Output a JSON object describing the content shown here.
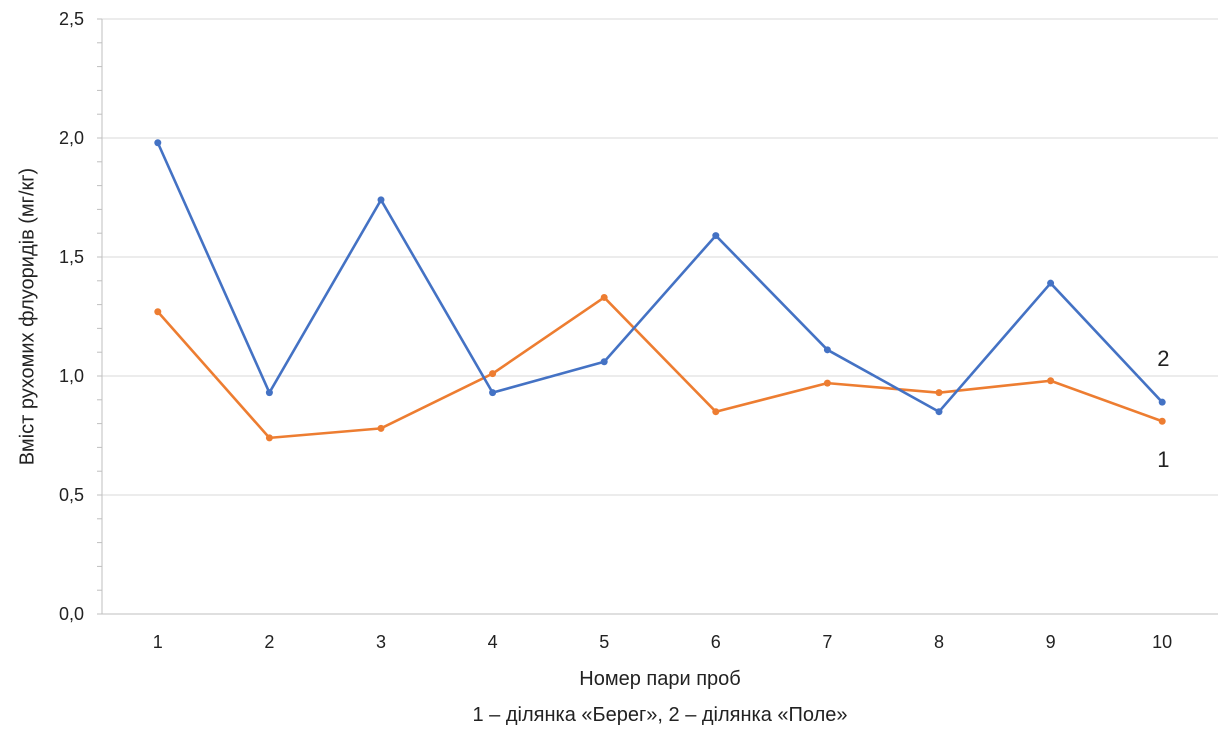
{
  "chart_data": {
    "type": "line",
    "categories": [
      "1",
      "2",
      "3",
      "4",
      "5",
      "6",
      "7",
      "8",
      "9",
      "10"
    ],
    "series": [
      {
        "name": "1",
        "color": "#ED7D31",
        "values": [
          1.27,
          0.74,
          0.78,
          1.01,
          1.33,
          0.85,
          0.97,
          0.93,
          0.98,
          0.81
        ]
      },
      {
        "name": "2",
        "color": "#4472C4",
        "values": [
          1.98,
          0.93,
          1.74,
          0.93,
          1.06,
          1.59,
          1.11,
          0.85,
          1.39,
          0.89
        ]
      }
    ],
    "xlabel": "Номер пари проб",
    "ylabel": "Вміст рухомих флуоридів (мг/кг)",
    "note": "1 – ділянка «Берег», 2 – ділянка «Поле»",
    "ylim": [
      0,
      2.5
    ],
    "yticks": [
      "0,0",
      "0,5",
      "1,0",
      "1,5",
      "2,0",
      "2,5"
    ],
    "grid": true,
    "legend": "none"
  }
}
